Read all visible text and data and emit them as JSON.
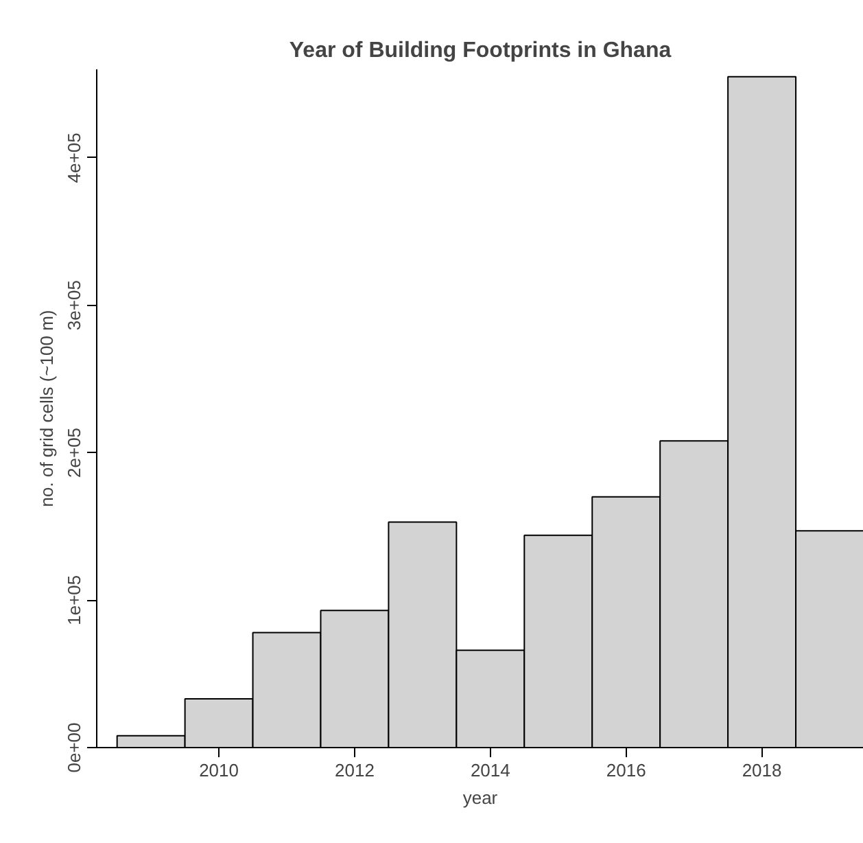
{
  "chart_data": {
    "type": "histogram",
    "title": "Year of Building Footprints in Ghana",
    "xlabel": "year",
    "ylabel": "no. of grid cells (~100 m)",
    "bins": [
      2008.5,
      2009.5,
      2010.5,
      2011.5,
      2012.5,
      2013.5,
      2014.5,
      2015.5,
      2016.5,
      2017.5,
      2018.5,
      2019.5
    ],
    "values": [
      8000,
      33000,
      78000,
      93000,
      153000,
      66000,
      144000,
      170000,
      208000,
      455000,
      147000
    ],
    "color": "#d3d3d3",
    "xlim": [
      2008.2,
      2019.5
    ],
    "ylim": [
      0,
      460000
    ],
    "xticks": [
      2010,
      2012,
      2014,
      2016,
      2018
    ],
    "yticks": [
      {
        "value": 0,
        "label": "0e+00"
      },
      {
        "value": 100000,
        "label": "1e+05"
      },
      {
        "value": 200000,
        "label": "2e+05"
      },
      {
        "value": 300000,
        "label": "3e+05"
      },
      {
        "value": 400000,
        "label": "4e+05"
      }
    ],
    "grid": false
  }
}
